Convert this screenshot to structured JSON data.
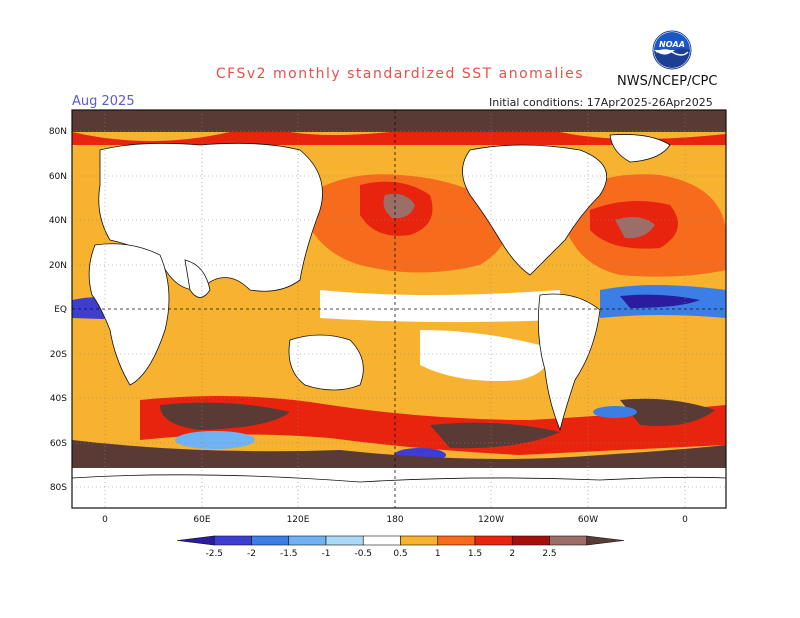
{
  "title": "CFSv2 monthly standardized SST anomalies",
  "valid_month": "Aug 2025",
  "initial_conditions": "Initial conditions: 17Apr2025-26Apr2025",
  "agency": "NWS/NCEP/CPC",
  "logo_text": "NOAA",
  "lat_labels": [
    "80N",
    "60N",
    "40N",
    "20N",
    "EQ",
    "20S",
    "40S",
    "60S",
    "80S"
  ],
  "lon_labels": [
    "0",
    "60E",
    "120E",
    "180",
    "120W",
    "60W",
    "0"
  ],
  "colorbar": {
    "ticks": [
      "-2.5",
      "-2",
      "-1.5",
      "-1",
      "-0.5",
      "0.5",
      "1",
      "1.5",
      "2",
      "2.5"
    ],
    "colors": [
      "#2b1b9e",
      "#3d3dd1",
      "#3b7fe6",
      "#6fb3f2",
      "#a9d9f7",
      "#ffffff",
      "#f7b230",
      "#f76b1c",
      "#e8240f",
      "#a5100c",
      "#9b6e68",
      "#5a3a34"
    ]
  }
}
